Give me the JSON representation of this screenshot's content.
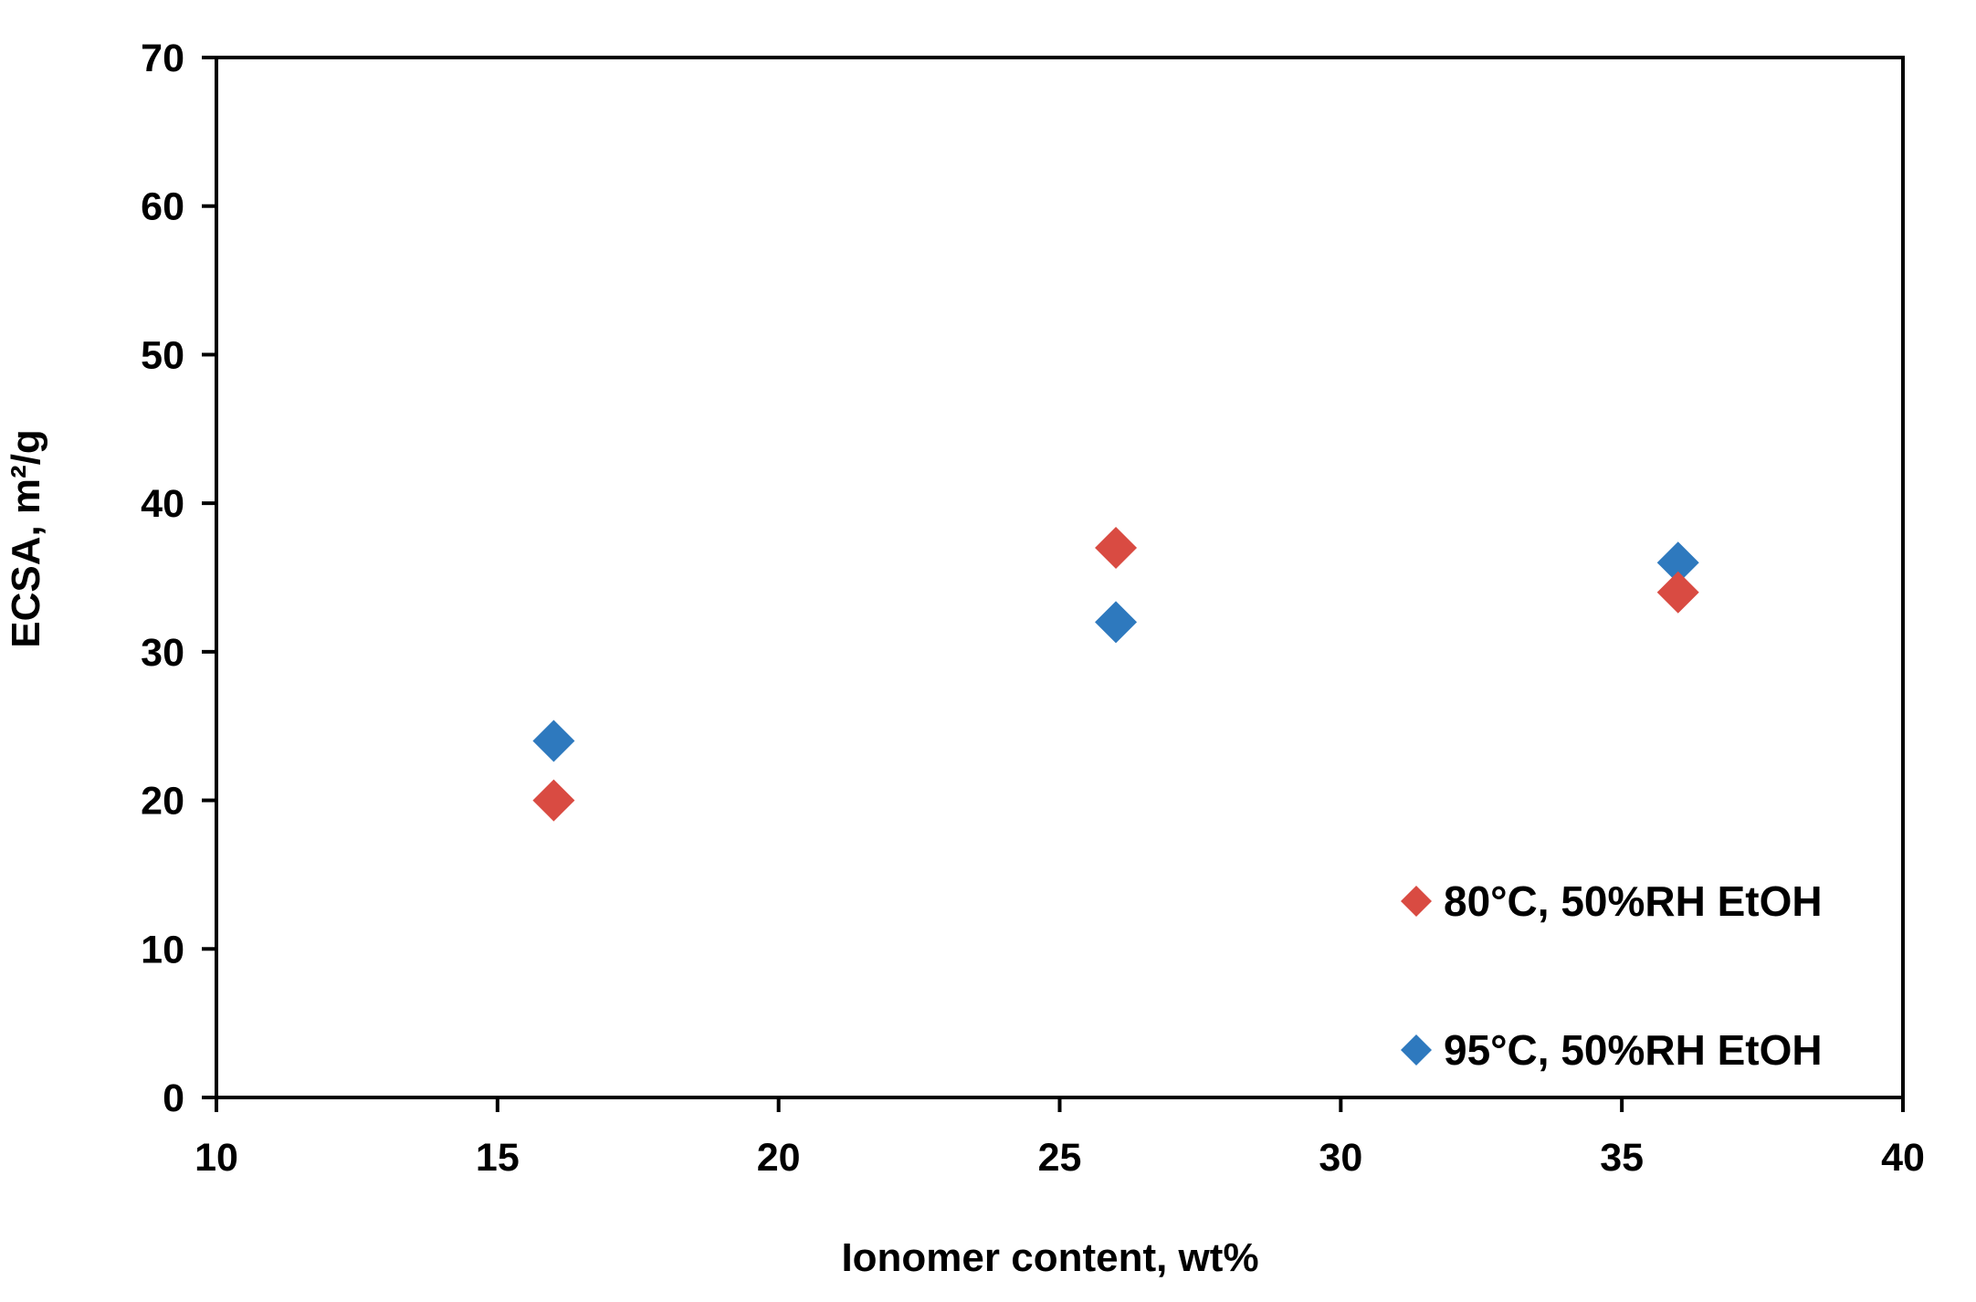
{
  "chart_data": {
    "type": "scatter",
    "title": "",
    "xlabel": "Ionomer content, wt%",
    "ylabel": "ECSA, m²/g",
    "xlim": [
      10,
      40
    ],
    "ylim": [
      0,
      70
    ],
    "xticks": [
      10,
      15,
      20,
      25,
      30,
      35,
      40
    ],
    "yticks": [
      0,
      10,
      20,
      30,
      40,
      50,
      60,
      70
    ],
    "grid": false,
    "plot_border": true,
    "legend_position": "lower-right",
    "marker": "diamond",
    "series": [
      {
        "name": "80°C, 50%RH EtOH",
        "color": "#d94b42",
        "points": [
          {
            "x": 16,
            "y": 20
          },
          {
            "x": 26,
            "y": 37
          },
          {
            "x": 36,
            "y": 34
          }
        ]
      },
      {
        "name": "95°C, 50%RH EtOH",
        "color": "#2e79be",
        "points": [
          {
            "x": 16,
            "y": 24
          },
          {
            "x": 26,
            "y": 32
          },
          {
            "x": 36,
            "y": 36
          }
        ]
      }
    ]
  },
  "colors": {
    "axis": "#000000",
    "text": "#000000",
    "background": "#ffffff"
  }
}
